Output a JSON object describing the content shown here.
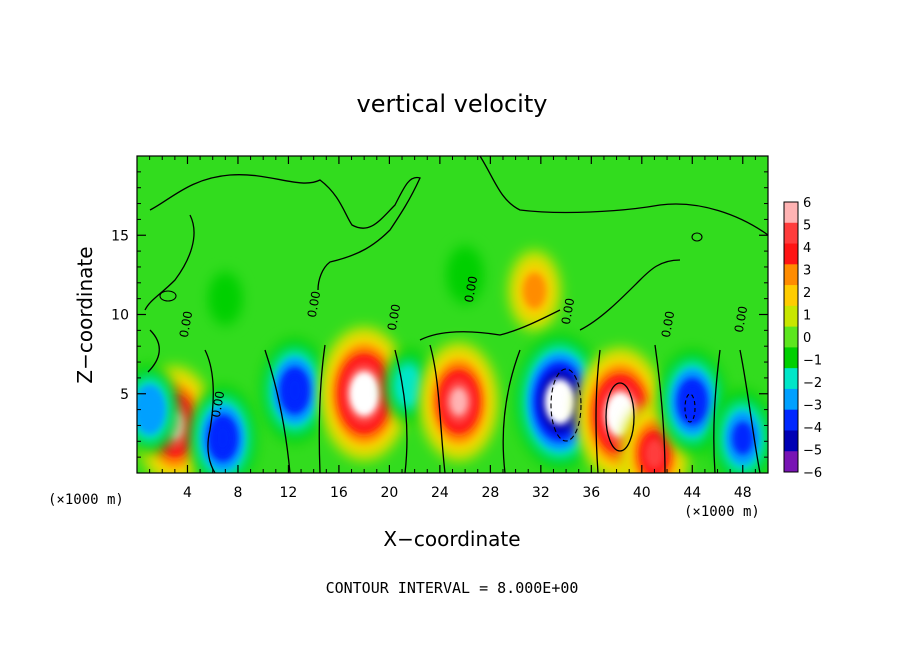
{
  "chart_data": {
    "type": "heatmap",
    "title": "vertical velocity",
    "xlabel": "X−coordinate",
    "ylabel": "Z−coordinate",
    "x_unit": "(×1000 m)",
    "y_unit": "(×1000 m)",
    "xlim": [
      0,
      50
    ],
    "ylim": [
      0,
      20
    ],
    "x_ticks": [
      4,
      8,
      12,
      16,
      20,
      24,
      28,
      32,
      36,
      40,
      44,
      48
    ],
    "x_tick_labels": [
      "4",
      "8",
      "12",
      "16",
      "20",
      "24",
      "28",
      "32",
      "36",
      "40",
      "44",
      "48"
    ],
    "y_ticks": [
      5,
      10,
      15
    ],
    "y_tick_labels": [
      "5",
      "10",
      "15"
    ],
    "colorbar": {
      "levels": [
        6,
        5,
        4,
        3,
        2,
        1,
        0,
        -1,
        -2,
        -3,
        -4,
        -5,
        -6
      ],
      "labels": [
        "6",
        "5",
        "4",
        "3",
        "2",
        "1",
        "0",
        "−1",
        "−2",
        "−3",
        "−4",
        "−5",
        "−6"
      ],
      "colors": [
        "#ffb3b3",
        "#ff3c3c",
        "#ff1414",
        "#ff8c00",
        "#ffcc00",
        "#c8e600",
        "#5de61e",
        "#00d000",
        "#00e6c8",
        "#00a0ff",
        "#0028ff",
        "#0000b4",
        "#7814b4"
      ]
    },
    "background_color": "#32dc1e",
    "contour_label": "0.00",
    "contour_interval_text": "CONTOUR INTERVAL = 8.000E+00",
    "features": [
      {
        "x": 3,
        "z": 3,
        "value": 5.5
      },
      {
        "x": 6.8,
        "z": 2.2,
        "value": -4.5
      },
      {
        "x": 12.5,
        "z": 5.2,
        "value": -4.5
      },
      {
        "x": 18,
        "z": 5.0,
        "value": 6.5
      },
      {
        "x": 21.5,
        "z": 5.5,
        "value": -2.5
      },
      {
        "x": 25.5,
        "z": 4.5,
        "value": 5.5
      },
      {
        "x": 31.5,
        "z": 11.5,
        "value": 3.0
      },
      {
        "x": 33.5,
        "z": 4.5,
        "value": -6.5
      },
      {
        "x": 38.3,
        "z": 3.7,
        "value": 6.5
      },
      {
        "x": 41,
        "z": 1.2,
        "value": 4.5
      },
      {
        "x": 44,
        "z": 4.5,
        "value": -4.5
      },
      {
        "x": 48,
        "z": 2.2,
        "value": -4.0
      },
      {
        "x": 26,
        "z": 12.5,
        "value": -1.5
      },
      {
        "x": 7,
        "z": 11,
        "value": -1.2
      },
      {
        "x": 1,
        "z": 4,
        "value": -3.5
      }
    ]
  }
}
